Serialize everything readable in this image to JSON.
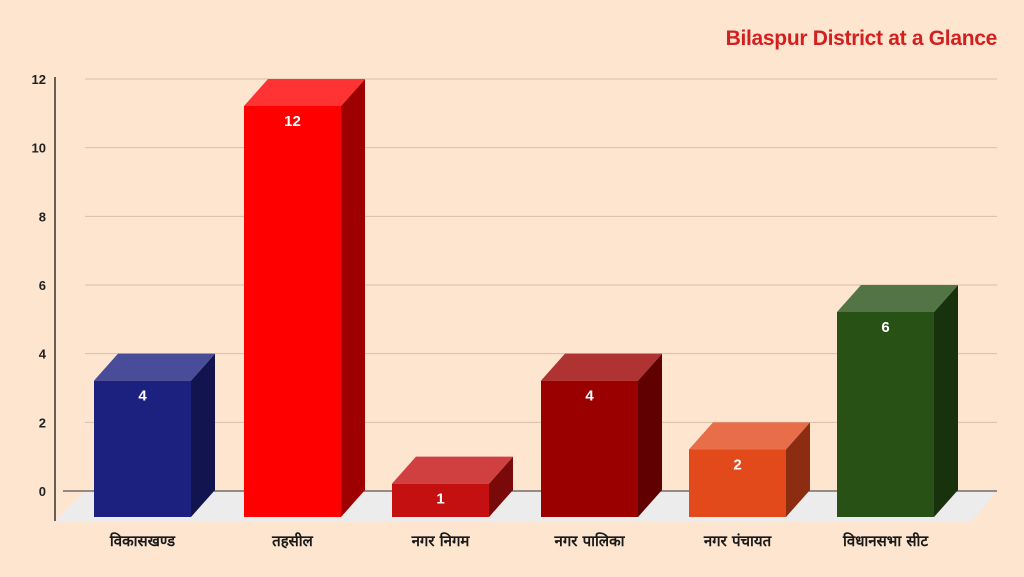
{
  "chart_data": {
    "type": "bar",
    "title": "Bilaspur District at a Glance",
    "categories": [
      "विकासखण्ड",
      "तहसील",
      "नगर निगम",
      "नगर पालिका",
      "नगर पंचायत",
      "विधानसभा सीट"
    ],
    "values": [
      4,
      12,
      1,
      4,
      2,
      6
    ],
    "colors": [
      "#1c2180",
      "#ff0000",
      "#c41010",
      "#9b0000",
      "#e2491b",
      "#285116"
    ],
    "xlabel": "",
    "ylabel": "",
    "ylim": [
      0,
      12
    ],
    "yticks": [
      0,
      2,
      4,
      6,
      8,
      10,
      12
    ],
    "grid": true,
    "legend": "none",
    "style": "3d-bar"
  },
  "colors": {
    "background": "#fde5cf",
    "title": "#d41f1f",
    "gridline": "#d9bfa8",
    "floor": "#ececec"
  }
}
